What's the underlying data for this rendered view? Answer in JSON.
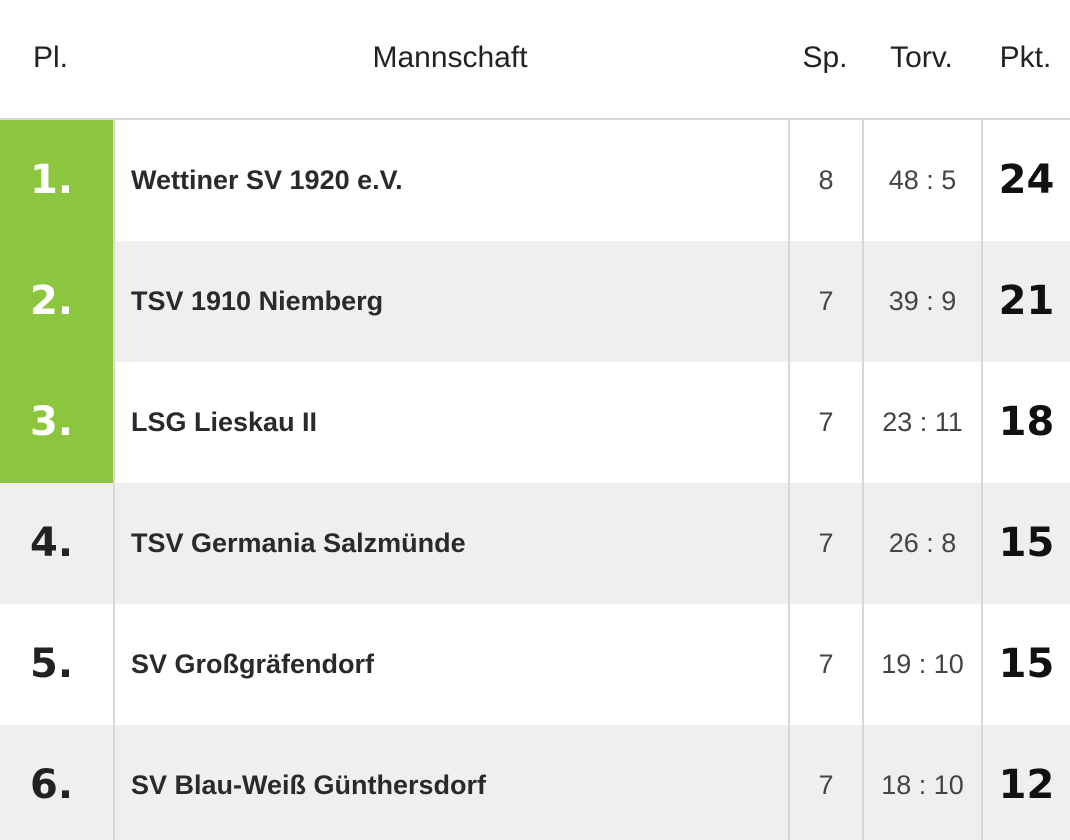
{
  "header": {
    "place": "Pl.",
    "team": "Mannschaft",
    "games": "Sp.",
    "goals": "Torv.",
    "points": "Pkt."
  },
  "colors": {
    "promotion": "#8cc63f",
    "row_alt": "#efefef"
  },
  "rows": [
    {
      "place": "1.",
      "team": "Wettiner SV 1920 e.V.",
      "games": "8",
      "goals": "48 : 5",
      "points": "24",
      "promotion": true
    },
    {
      "place": "2.",
      "team": "TSV 1910 Niemberg",
      "games": "7",
      "goals": "39 : 9",
      "points": "21",
      "promotion": true
    },
    {
      "place": "3.",
      "team": "LSG Lieskau II",
      "games": "7",
      "goals": "23 : 11",
      "points": "18",
      "promotion": true
    },
    {
      "place": "4.",
      "team": "TSV Germania Salzmünde",
      "games": "7",
      "goals": "26 : 8",
      "points": "15",
      "promotion": false
    },
    {
      "place": "5.",
      "team": "SV Großgräfendorf",
      "games": "7",
      "goals": "19 : 10",
      "points": "15",
      "promotion": false
    },
    {
      "place": "6.",
      "team": "SV Blau-Weiß Günthersdorf",
      "games": "7",
      "goals": "18 : 10",
      "points": "12",
      "promotion": false
    }
  ]
}
